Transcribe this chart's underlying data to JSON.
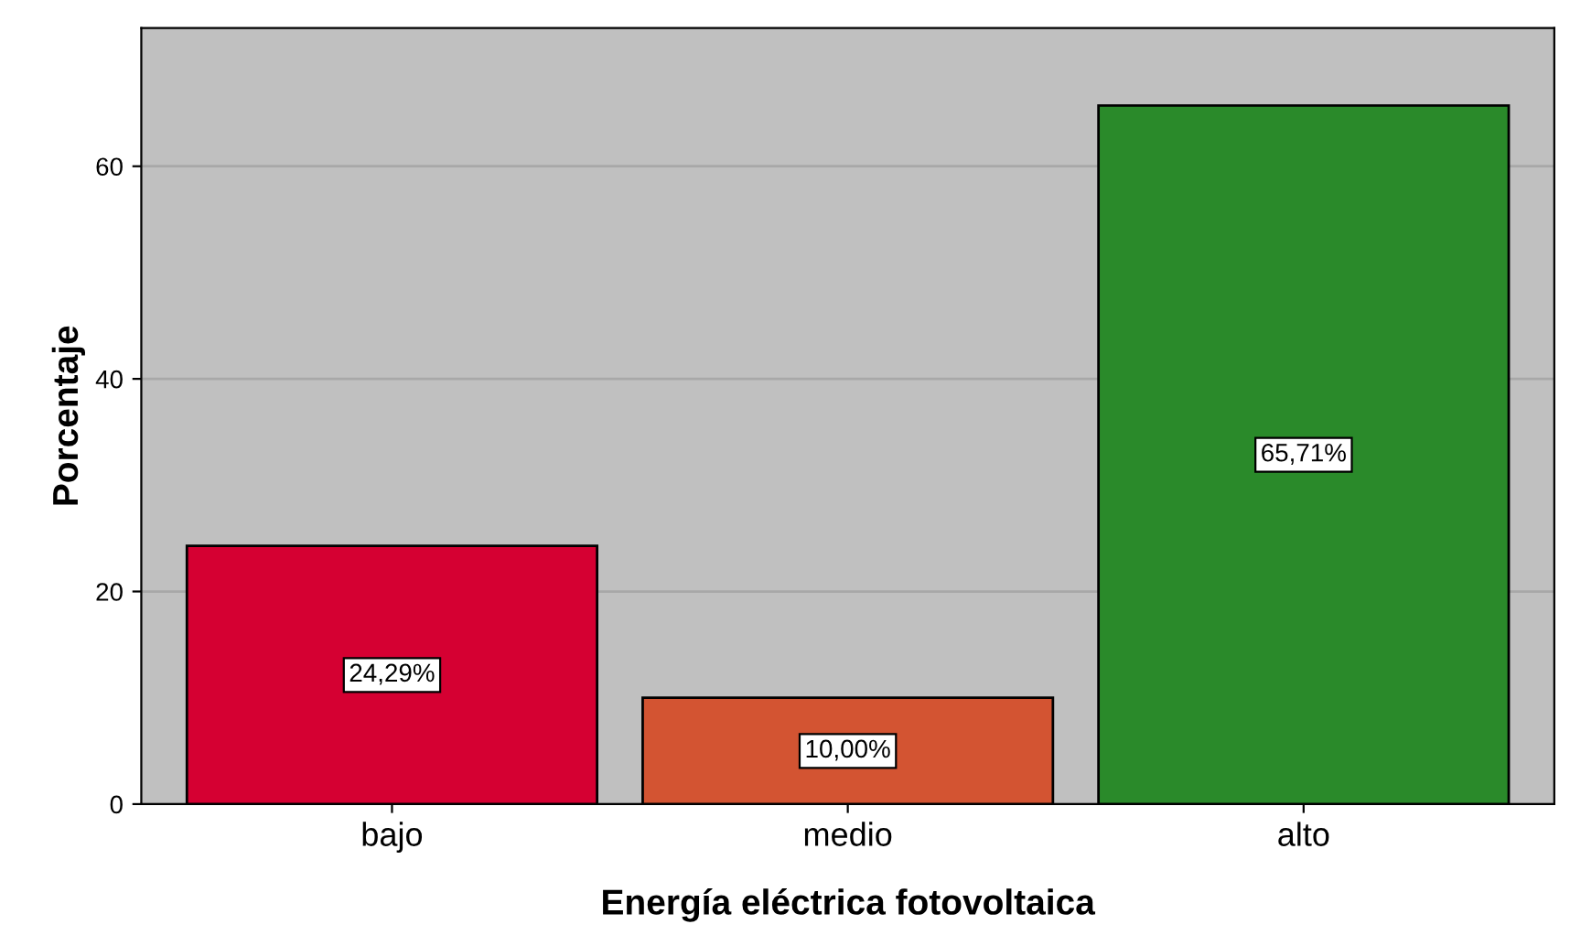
{
  "chart_data": {
    "type": "bar",
    "xlabel": "Energía eléctrica fotovoltaica",
    "ylabel": "Porcentaje",
    "categories": [
      "bajo",
      "medio",
      "alto"
    ],
    "values": [
      24.29,
      10.0,
      65.71
    ],
    "colors": [
      "#d50032",
      "#d35432",
      "#2a8a2a"
    ],
    "value_labels": [
      "24,29%",
      "10,00%",
      "65,71%"
    ],
    "ylim": [
      0,
      73
    ],
    "yticks": [
      0,
      20,
      40,
      60
    ],
    "grid": "y"
  }
}
